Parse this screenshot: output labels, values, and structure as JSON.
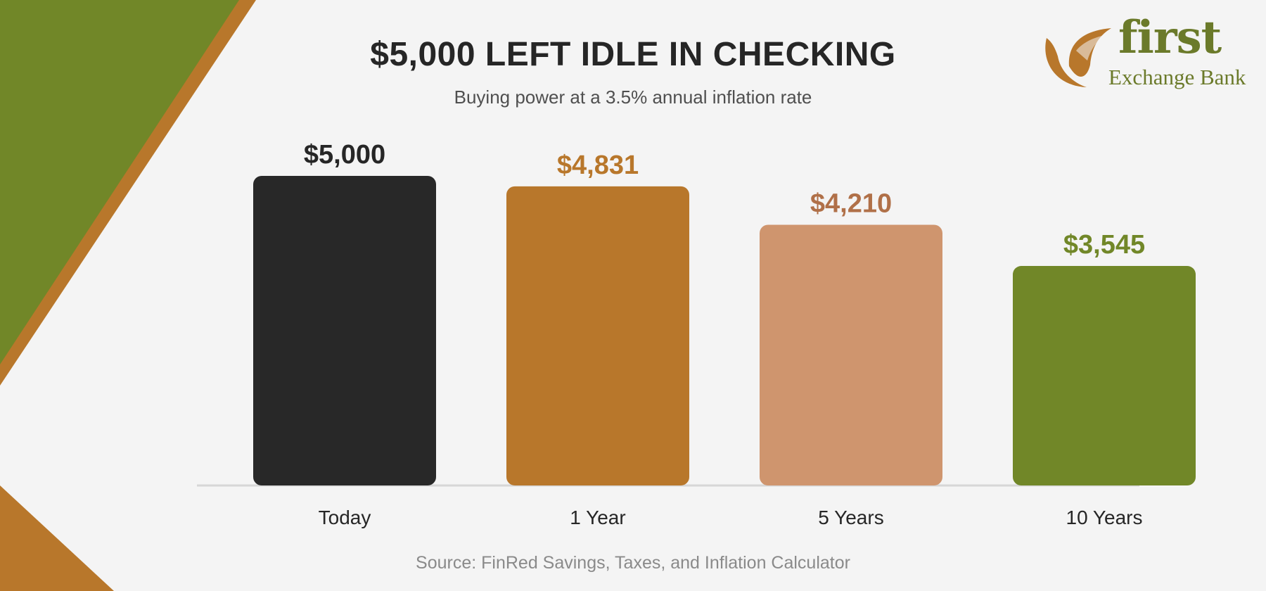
{
  "header": {
    "title": "$5,000 LEFT IDLE IN CHECKING",
    "subtitle": "Buying power at a 3.5% annual inflation rate"
  },
  "logo": {
    "word": "first",
    "name": "Exchange Bank",
    "icon": "leaf-icon"
  },
  "footer": {
    "source": "Source: FinRed Savings, Taxes, and Inflation Calculator"
  },
  "colors": {
    "background": "#f4f4f4",
    "olive": "#718728",
    "copper": "#b8772b",
    "tan": "#cf956e",
    "dark": "#282828"
  },
  "chart_data": {
    "type": "bar",
    "categories": [
      "Today",
      "1 Year",
      "5 Years",
      "10 Years"
    ],
    "values": [
      5000,
      4831,
      4210,
      3545
    ],
    "value_labels": [
      "$5,000",
      "$4,831",
      "$4,210",
      "$3,545"
    ],
    "bar_colors": [
      "#282828",
      "#b8772b",
      "#cf956e",
      "#718728"
    ],
    "label_colors": [
      "#262626",
      "#b8772b",
      "#b07048",
      "#718728"
    ],
    "ylim": [
      0,
      5000
    ],
    "grid": false,
    "legend": "none"
  }
}
